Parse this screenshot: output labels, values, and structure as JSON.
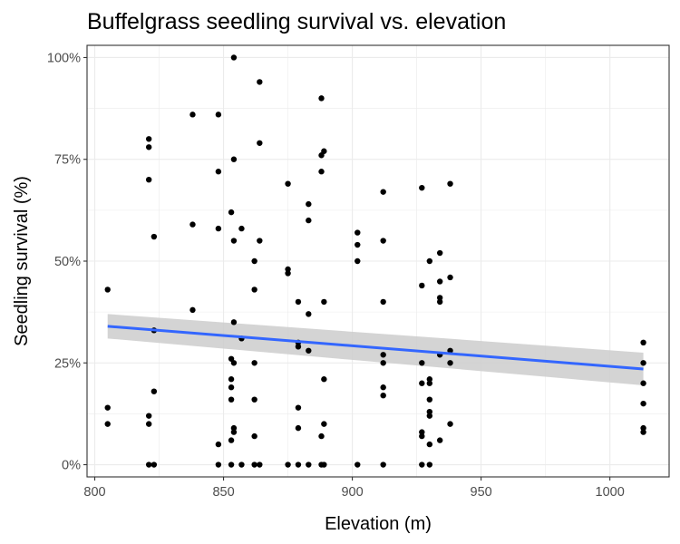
{
  "chart_data": {
    "type": "scatter",
    "title": "Buffelgrass seedling survival vs. elevation",
    "xlabel": "Elevation (m)",
    "ylabel": "Seedling survival (%)",
    "xlim": [
      797,
      1023
    ],
    "ylim": [
      -3,
      103
    ],
    "x_ticks": [
      800,
      850,
      900,
      950,
      1000
    ],
    "x_tick_labels": [
      "800",
      "850",
      "900",
      "950",
      "1000"
    ],
    "y_ticks": [
      0,
      25,
      50,
      75,
      100
    ],
    "y_tick_labels": [
      "0%",
      "25%",
      "50%",
      "75%",
      "100%"
    ],
    "grid": true,
    "legend": "none",
    "colors": {
      "points": "#000000",
      "trend": "#3366ff",
      "band": "#cccccc",
      "grid": "#ebebeb",
      "border": "#333333"
    },
    "points": [
      [
        805,
        43
      ],
      [
        805,
        14
      ],
      [
        805,
        10
      ],
      [
        821,
        80
      ],
      [
        821,
        78
      ],
      [
        821,
        70
      ],
      [
        821,
        12
      ],
      [
        821,
        10
      ],
      [
        821,
        0
      ],
      [
        823,
        56
      ],
      [
        823,
        33
      ],
      [
        823,
        18
      ],
      [
        823,
        0
      ],
      [
        838,
        86
      ],
      [
        838,
        59
      ],
      [
        838,
        38
      ],
      [
        848,
        86
      ],
      [
        848,
        72
      ],
      [
        848,
        58
      ],
      [
        848,
        5
      ],
      [
        848,
        0
      ],
      [
        853,
        62
      ],
      [
        853,
        26
      ],
      [
        853,
        21
      ],
      [
        853,
        19
      ],
      [
        853,
        16
      ],
      [
        853,
        6
      ],
      [
        853,
        0
      ],
      [
        854,
        100
      ],
      [
        854,
        75
      ],
      [
        854,
        55
      ],
      [
        854,
        35
      ],
      [
        854,
        25
      ],
      [
        854,
        9
      ],
      [
        854,
        8
      ],
      [
        857,
        58
      ],
      [
        857,
        31
      ],
      [
        857,
        0
      ],
      [
        862,
        50
      ],
      [
        862,
        43
      ],
      [
        862,
        25
      ],
      [
        862,
        16
      ],
      [
        862,
        7
      ],
      [
        862,
        0
      ],
      [
        864,
        94
      ],
      [
        864,
        79
      ],
      [
        864,
        55
      ],
      [
        864,
        0
      ],
      [
        875,
        69
      ],
      [
        875,
        48
      ],
      [
        875,
        47
      ],
      [
        875,
        0
      ],
      [
        879,
        40
      ],
      [
        879,
        30
      ],
      [
        879,
        29
      ],
      [
        879,
        14
      ],
      [
        879,
        9
      ],
      [
        879,
        0
      ],
      [
        883,
        64
      ],
      [
        883,
        60
      ],
      [
        883,
        37
      ],
      [
        883,
        28
      ],
      [
        883,
        0
      ],
      [
        888,
        90
      ],
      [
        888,
        76
      ],
      [
        888,
        72
      ],
      [
        888,
        7
      ],
      [
        888,
        0
      ],
      [
        889,
        77
      ],
      [
        889,
        40
      ],
      [
        889,
        21
      ],
      [
        889,
        10
      ],
      [
        889,
        0
      ],
      [
        902,
        57
      ],
      [
        902,
        54
      ],
      [
        902,
        50
      ],
      [
        902,
        0
      ],
      [
        912,
        67
      ],
      [
        912,
        55
      ],
      [
        912,
        40
      ],
      [
        912,
        27
      ],
      [
        912,
        25
      ],
      [
        912,
        19
      ],
      [
        912,
        17
      ],
      [
        912,
        0
      ],
      [
        927,
        68
      ],
      [
        927,
        44
      ],
      [
        927,
        25
      ],
      [
        927,
        20
      ],
      [
        927,
        8
      ],
      [
        927,
        7
      ],
      [
        927,
        0
      ],
      [
        930,
        50
      ],
      [
        930,
        21
      ],
      [
        930,
        20
      ],
      [
        930,
        16
      ],
      [
        930,
        13
      ],
      [
        930,
        12
      ],
      [
        930,
        5
      ],
      [
        930,
        0
      ],
      [
        934,
        52
      ],
      [
        934,
        45
      ],
      [
        934,
        41
      ],
      [
        934,
        40
      ],
      [
        934,
        27
      ],
      [
        934,
        6
      ],
      [
        938,
        69
      ],
      [
        938,
        46
      ],
      [
        938,
        28
      ],
      [
        938,
        25
      ],
      [
        938,
        10
      ],
      [
        1013,
        30
      ],
      [
        1013,
        25
      ],
      [
        1013,
        20
      ],
      [
        1013,
        15
      ],
      [
        1013,
        9
      ],
      [
        1013,
        8
      ]
    ],
    "trend_line": {
      "x": [
        805,
        1013
      ],
      "y": [
        34,
        23.5
      ]
    },
    "confidence_band": {
      "x": [
        805,
        1013
      ],
      "lower": [
        31,
        19.5
      ],
      "upper": [
        37,
        27.5
      ]
    }
  }
}
